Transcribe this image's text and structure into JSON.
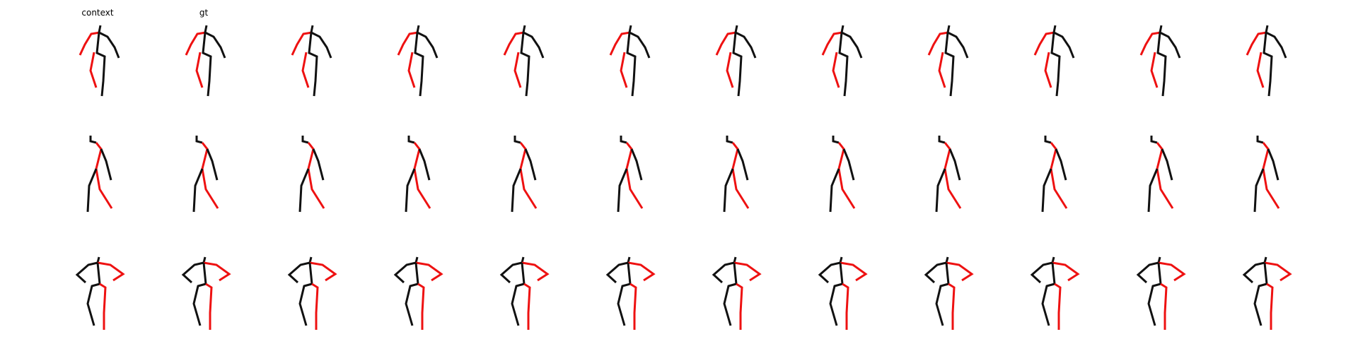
{
  "figure": {
    "column_titles": [
      "context",
      "gt",
      "",
      "",
      "",
      "",
      "",
      "",
      "",
      "",
      "",
      ""
    ],
    "colors": {
      "highlight": "#ee1111",
      "base": "#111111"
    },
    "rows": [
      {
        "pose": "front-facing-arms-down"
      },
      {
        "pose": "side-profile-walking"
      },
      {
        "pose": "bent-forward-arms-extended"
      }
    ]
  }
}
